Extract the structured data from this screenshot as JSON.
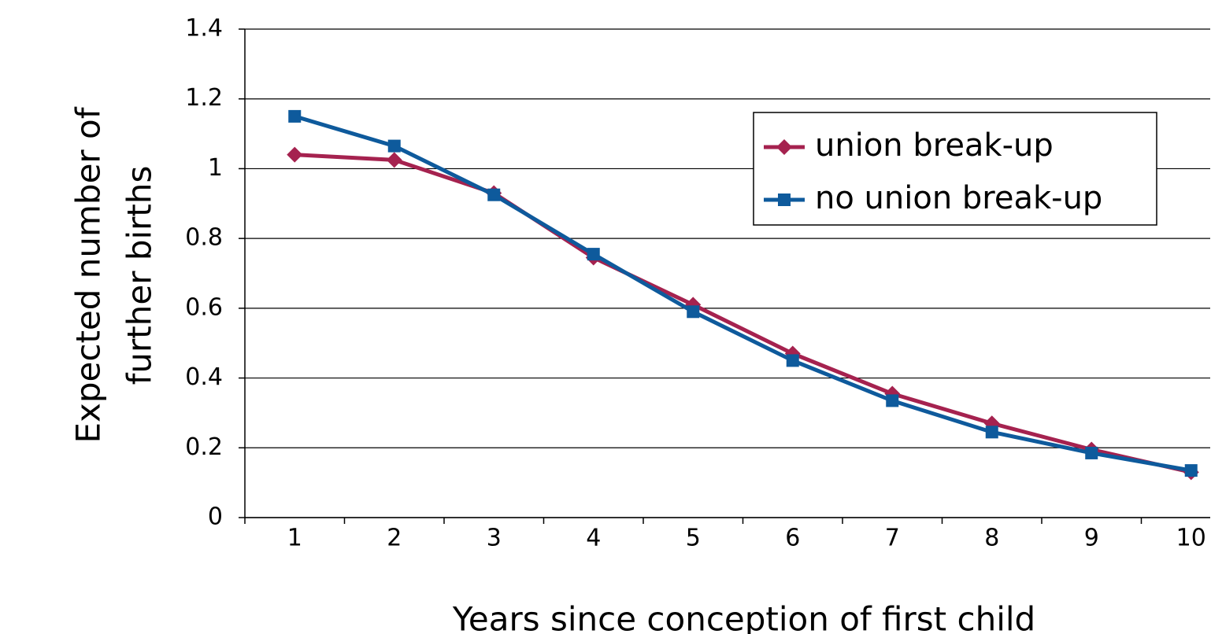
{
  "chart_data": {
    "type": "line",
    "x_label": "Years since conception of first child",
    "y_label": [
      "Expected number of",
      "further births"
    ],
    "categories": [
      "1",
      "2",
      "3",
      "4",
      "5",
      "6",
      "7",
      "8",
      "9",
      "10"
    ],
    "series": [
      {
        "name": "union break-up",
        "color": "#a5224f",
        "marker": "diamond",
        "values": [
          1.04,
          1.025,
          0.93,
          0.745,
          0.61,
          0.47,
          0.355,
          0.27,
          0.195,
          0.13
        ]
      },
      {
        "name": "no union break-up",
        "color": "#0e5a9c",
        "marker": "square",
        "values": [
          1.15,
          1.065,
          0.925,
          0.755,
          0.59,
          0.45,
          0.335,
          0.245,
          0.185,
          0.135
        ]
      }
    ],
    "ylim": [
      0,
      1.4
    ],
    "yticks": [
      0,
      0.2,
      0.4,
      0.6,
      0.8,
      1,
      1.2,
      1.4
    ],
    "grid": true
  }
}
